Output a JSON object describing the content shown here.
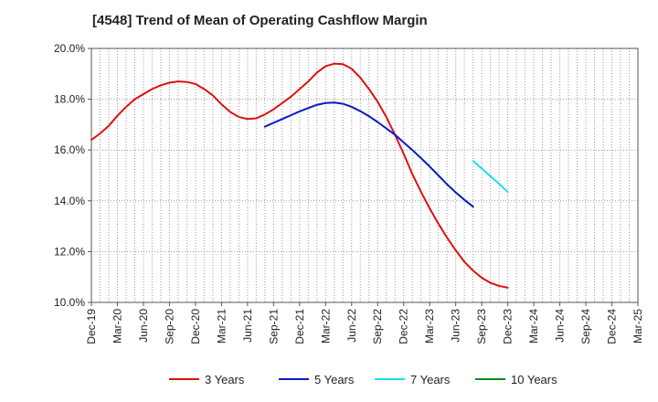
{
  "chart_data": {
    "type": "line",
    "title": "[4548]  Trend of Mean of Operating Cashflow Margin",
    "xlabel": "",
    "ylabel": "",
    "ylim": [
      10.0,
      20.0
    ],
    "y_ticks": [
      "10.0%",
      "12.0%",
      "14.0%",
      "16.0%",
      "18.0%",
      "20.0%"
    ],
    "y_tick_values": [
      10,
      12,
      14,
      16,
      18,
      20
    ],
    "x_ticks": [
      "Dec-19",
      "Mar-20",
      "Jun-20",
      "Sep-20",
      "Dec-20",
      "Mar-21",
      "Jun-21",
      "Sep-21",
      "Dec-21",
      "Mar-22",
      "Jun-22",
      "Sep-22",
      "Dec-22",
      "Mar-23",
      "Jun-23",
      "Sep-23",
      "Dec-23",
      "Mar-24",
      "Jun-24",
      "Sep-24",
      "Dec-24",
      "Mar-25"
    ],
    "x_range_months": [
      0,
      63
    ],
    "grid": true,
    "legend_position": "bottom",
    "series": [
      {
        "name": "3 Years",
        "color": "#dd1111",
        "x": [
          0,
          1,
          2,
          3,
          4,
          5,
          6,
          7,
          8,
          9,
          10,
          11,
          12,
          13,
          14,
          15,
          16,
          17,
          18,
          19,
          20,
          21,
          22,
          23,
          24,
          25,
          26,
          27,
          28,
          29,
          30,
          31,
          32,
          33,
          34,
          35,
          36,
          37,
          38,
          39,
          40,
          41,
          42,
          43,
          44,
          45,
          46,
          47,
          48,
          49,
          50,
          51
        ],
        "values": [
          16.4,
          16.65,
          16.95,
          17.35,
          17.7,
          18.0,
          18.2,
          18.4,
          18.55,
          18.65,
          18.7,
          18.68,
          18.6,
          18.4,
          18.15,
          17.8,
          17.5,
          17.3,
          17.22,
          17.25,
          17.4,
          17.6,
          17.85,
          18.1,
          18.4,
          18.7,
          19.05,
          19.3,
          19.4,
          19.38,
          19.2,
          18.85,
          18.4,
          17.9,
          17.3,
          16.6,
          15.85,
          15.05,
          14.35,
          13.7,
          13.1,
          12.55,
          12.05,
          11.6,
          11.25,
          10.97,
          10.77,
          10.65,
          10.58,
          null,
          null,
          null
        ]
      },
      {
        "name": "5 Years",
        "color": "#0a1bc4",
        "x": [
          20,
          21,
          22,
          23,
          24,
          25,
          26,
          27,
          28,
          29,
          30,
          31,
          32,
          33,
          34,
          35,
          36,
          37,
          38,
          39,
          40,
          41,
          42,
          43,
          44,
          45,
          46,
          47,
          48,
          49,
          50,
          51
        ],
        "values": [
          16.92,
          17.07,
          17.22,
          17.37,
          17.52,
          17.65,
          17.78,
          17.85,
          17.87,
          17.82,
          17.7,
          17.53,
          17.33,
          17.1,
          16.85,
          16.6,
          16.3,
          16.0,
          15.68,
          15.35,
          15.0,
          14.65,
          14.33,
          14.04,
          13.77,
          null,
          null,
          null,
          null,
          null,
          null,
          null
        ]
      },
      {
        "name": "7 Years",
        "color": "#18e0e8",
        "x": [
          44,
          45,
          46,
          47,
          48,
          49,
          50,
          51
        ],
        "values": [
          15.57,
          15.27,
          14.97,
          14.67,
          14.35,
          null,
          null,
          null
        ]
      },
      {
        "name": "10 Years",
        "color": "#0a8a1a",
        "x": [],
        "values": []
      }
    ]
  }
}
